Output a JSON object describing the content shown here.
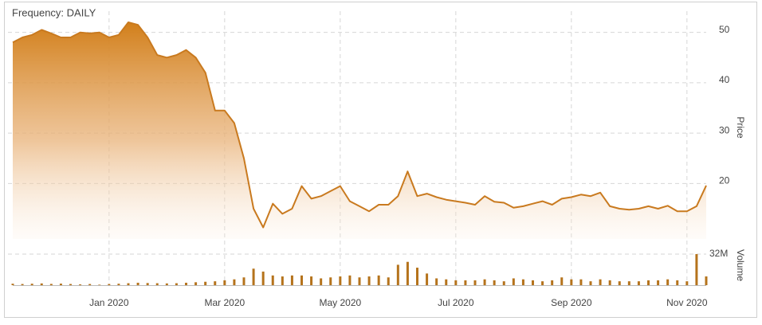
{
  "chart_data": {
    "type": "area",
    "title": "Frequency: DAILY",
    "categories": [
      null,
      null,
      null,
      null,
      null,
      null,
      null,
      null,
      null,
      null,
      "Jan 2020",
      null,
      null,
      null,
      null,
      null,
      null,
      null,
      null,
      null,
      null,
      null,
      "Mar 2020",
      null,
      null,
      null,
      null,
      null,
      null,
      null,
      null,
      null,
      null,
      null,
      "May 2020",
      null,
      null,
      null,
      null,
      null,
      null,
      null,
      null,
      null,
      null,
      null,
      "Jul 2020",
      null,
      null,
      null,
      null,
      null,
      null,
      null,
      null,
      null,
      null,
      null,
      "Sep 2020",
      null,
      null,
      null,
      null,
      null,
      null,
      null,
      null,
      null,
      null,
      null,
      "Nov 2020",
      null,
      null
    ],
    "series": [
      {
        "name": "Price",
        "color": "#c97a1f",
        "values": [
          48,
          49,
          49.5,
          50.5,
          49.8,
          49,
          49,
          50,
          49.8,
          50,
          49,
          49.5,
          52,
          51.5,
          49,
          45.5,
          45,
          45.5,
          46.5,
          45,
          42,
          34.5,
          34.5,
          32,
          25,
          15,
          11.3,
          16,
          14,
          15,
          19.5,
          17,
          17.5,
          18.5,
          19.5,
          16.5,
          15.5,
          14.5,
          15.8,
          15.8,
          17.5,
          22.4,
          17.5,
          18,
          17.3,
          16.8,
          16.5,
          16.2,
          15.8,
          17.5,
          16.4,
          16.2,
          15.2,
          15.5,
          16,
          16.5,
          15.8,
          17,
          17.3,
          17.8,
          17.5,
          18.2,
          15.5,
          15,
          14.8,
          15,
          15.5,
          15,
          15.6,
          14.5,
          14.5,
          15.5,
          19.6
        ]
      },
      {
        "name": "Volume",
        "type": "bar",
        "axis": "y2",
        "color": "#b5731c",
        "values": [
          1.5,
          1.2,
          1.5,
          1.8,
          1.3,
          1.6,
          1.2,
          0.8,
          1.2,
          0.5,
          1.2,
          1.5,
          2,
          2.5,
          2.2,
          2,
          1.8,
          2,
          2.5,
          3,
          3.5,
          4,
          5,
          6,
          8,
          17,
          14,
          10,
          9,
          10,
          10,
          9,
          7,
          8,
          9,
          10,
          8,
          9,
          10,
          8,
          21,
          24,
          18,
          12,
          7,
          6,
          5,
          5,
          5,
          6,
          5,
          4,
          7,
          6,
          5,
          4,
          5,
          8,
          6,
          6,
          4,
          6,
          5,
          4,
          4,
          4,
          5,
          5,
          6,
          5,
          4,
          32,
          9
        ]
      }
    ],
    "ylim": [
      9,
      52
    ],
    "yticks": [
      20,
      30,
      40,
      50
    ],
    "y2lim": [
      0,
      41
    ],
    "y2ticks": [
      {
        "value": 32,
        "label": "32M"
      }
    ],
    "grid": true
  }
}
